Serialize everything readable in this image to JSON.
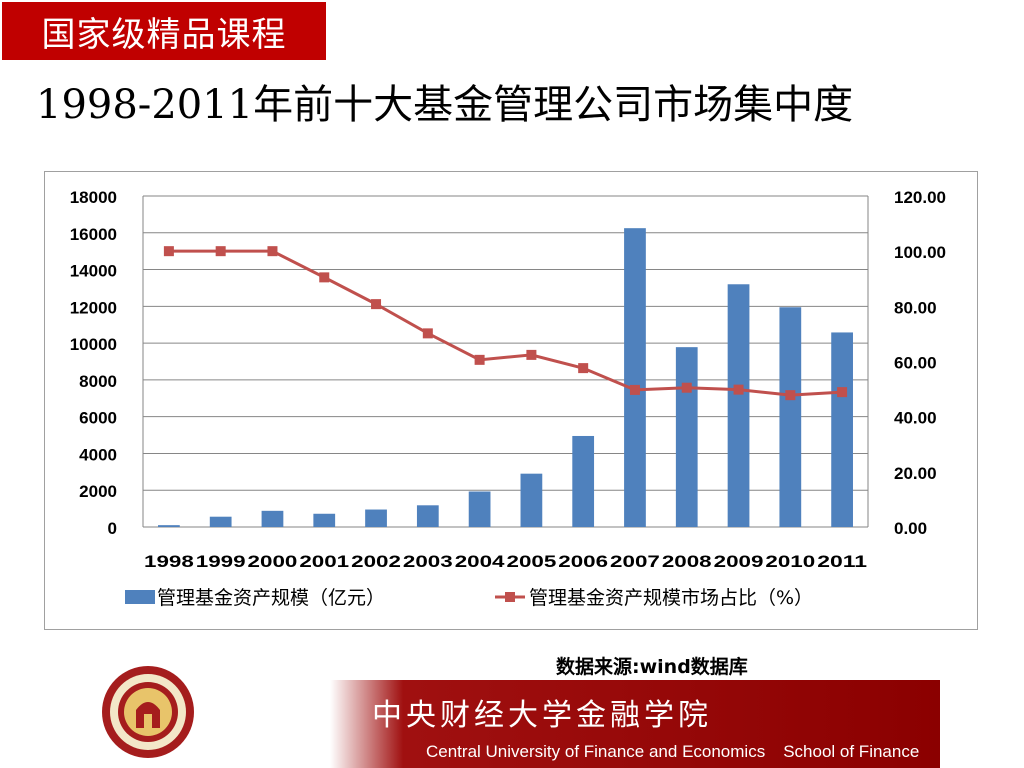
{
  "badge": {
    "text": "国家级精品课程"
  },
  "title": "1998-2011年前十大基金管理公司市场集中度",
  "source": "数据来源:wind数据库",
  "footer": {
    "cn": "中央财经大学金融学院",
    "en_left": "Central University of Finance and Economics",
    "en_right": "School of Finance"
  },
  "colors": {
    "badge_bg": "#c00000",
    "bar": "#4f81bd",
    "line": "#c0504d",
    "footer_red": "#8b0000"
  },
  "chart_data": {
    "type": "bar+line",
    "title": "",
    "categories": [
      "1998",
      "1999",
      "2000",
      "2001",
      "2002",
      "2003",
      "2004",
      "2005",
      "2006",
      "2007",
      "2008",
      "2009",
      "2010",
      "2011"
    ],
    "series": [
      {
        "name": "管理基金资产规模（亿元）",
        "type": "bar",
        "axis": "left",
        "values": [
          100,
          560,
          880,
          720,
          950,
          1180,
          1930,
          2900,
          4950,
          16250,
          9780,
          13200,
          11950,
          10580
        ]
      },
      {
        "name": "管理基金资产规模市场占比（%）",
        "type": "line",
        "axis": "right",
        "values": [
          100.0,
          100.0,
          100.0,
          90.5,
          80.8,
          70.2,
          60.6,
          62.4,
          57.6,
          49.7,
          50.5,
          49.8,
          47.8,
          48.9
        ]
      }
    ],
    "y_left": {
      "min": 0,
      "max": 18000,
      "ticks": [
        "0",
        "2000",
        "4000",
        "6000",
        "8000",
        "10000",
        "12000",
        "14000",
        "16000",
        "18000"
      ]
    },
    "y_right": {
      "min": 0,
      "max": 120,
      "ticks": [
        "0.00",
        "20.00",
        "40.00",
        "60.00",
        "80.00",
        "100.00",
        "120.00"
      ]
    },
    "grid": true,
    "legend_position": "bottom"
  }
}
